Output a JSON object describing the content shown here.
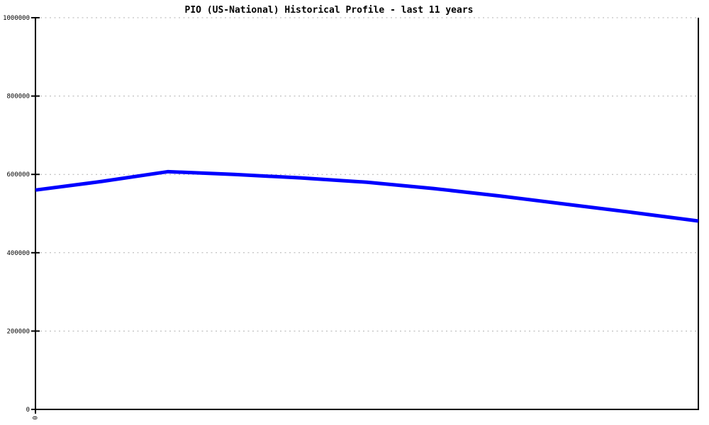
{
  "chart_data": {
    "type": "line",
    "title": "PIO (US-National) Historical Profile - last 11 years",
    "x": [
      0,
      1,
      2,
      3,
      4,
      5,
      6,
      7,
      8,
      9,
      10
    ],
    "series": [
      {
        "name": "PIO (US-National)",
        "values": [
          560000,
          582000,
          607000,
          600000,
          591000,
          580000,
          564000,
          545000,
          524000,
          503000,
          481000
        ]
      }
    ],
    "xlabel": "",
    "ylabel": "",
    "ylim": [
      0,
      1000000
    ],
    "yticks": [
      0,
      200000,
      400000,
      600000,
      800000,
      1000000
    ],
    "ytick_labels": [
      "0",
      "200000",
      "400000",
      "600000",
      "800000",
      "1000000"
    ],
    "xtick_labels_visible": [
      "0"
    ],
    "grid": "horizontal dashed gridlines at each y tick (except 0)",
    "legend_position": "none",
    "colors": {
      "line": "#0000ff",
      "grid": "#b0b0b0",
      "axis": "#000000",
      "background": "#ffffff",
      "title_text": "#000000"
    }
  }
}
